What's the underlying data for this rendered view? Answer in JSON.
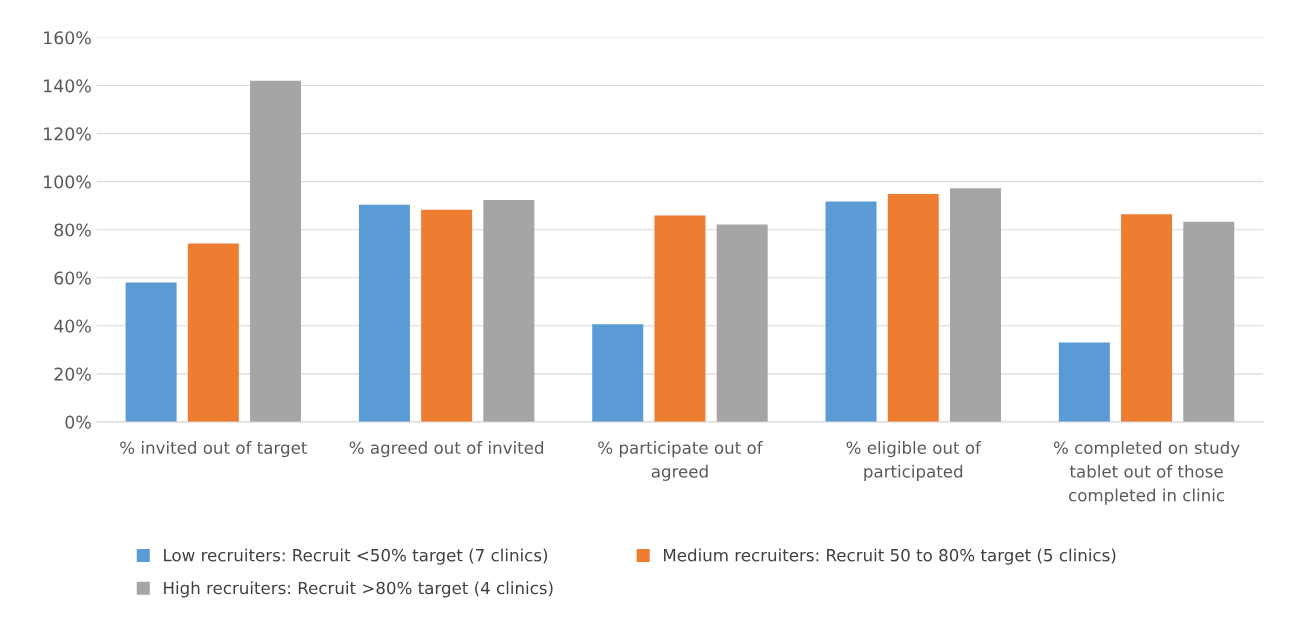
{
  "chart_data": {
    "type": "bar",
    "categories": [
      "% invited out of target",
      "% agreed out of invited",
      "% participate out of agreed",
      "% eligible out of participated",
      "% completed on study tablet out of those completed in clinic"
    ],
    "series": [
      {
        "name": "Low recruiters: Recruit <50% target (7 clinics)",
        "color": "#5b9bd5",
        "values": [
          58,
          90.4,
          40.6,
          91.7,
          33
        ]
      },
      {
        "name": "Medium recruiters: Recruit 50 to 80% target (5 clinics)",
        "color": "#ed7d31",
        "values": [
          74.3,
          88.3,
          85.9,
          94.9,
          86.4
        ]
      },
      {
        "name": "High recruiters: Recruit >80% target (4 clinics)",
        "color": "#a5a5a5",
        "values": [
          142,
          92.4,
          82.2,
          97.3,
          83.3
        ]
      }
    ],
    "ylim": [
      0,
      160
    ],
    "yticks": [
      {
        "value": 0,
        "label": "0%"
      },
      {
        "value": 20,
        "label": "20%"
      },
      {
        "value": 40,
        "label": "40%"
      },
      {
        "value": 60,
        "label": "60%"
      },
      {
        "value": 80,
        "label": "80%"
      },
      {
        "value": 100,
        "label": "100%"
      },
      {
        "value": 120,
        "label": "120%"
      },
      {
        "value": 140,
        "label": "140%"
      },
      {
        "value": 160,
        "label": "160%"
      }
    ],
    "grid": "y",
    "legend": "bottom"
  }
}
